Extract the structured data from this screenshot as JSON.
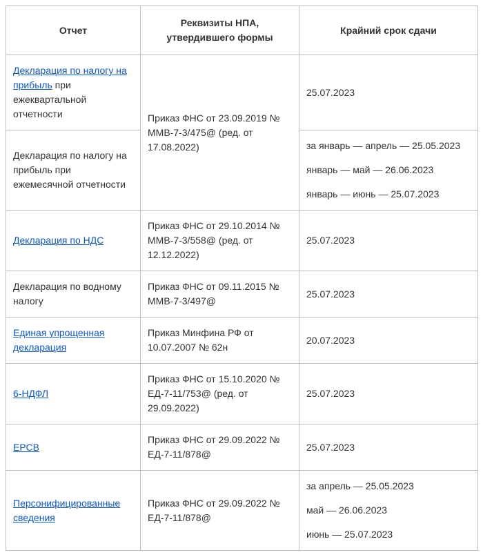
{
  "table": {
    "headers": {
      "c1": "Отчет",
      "c2": "Реквизиты НПА, утвердившего формы",
      "c3": "Крайний срок сдачи"
    },
    "rows": {
      "r1": {
        "link": "Декларация по налогу на прибыль",
        "rest": " при ежеквартальной отчетности",
        "deadline": "25.07.2023"
      },
      "r2": {
        "report": "Декларация по налогу на прибыль при ежемесячной отчетности",
        "npa_shared": "Приказ ФНС от 23.09.2019 № ММВ-7-3/475@ (ред. от 17.08.2022)",
        "d1": "за январь — апрель — 25.05.2023",
        "d2": "январь — май — 26.06.2023",
        "d3": "январь — июнь — 25.07.2023"
      },
      "r3": {
        "link": "Декларация по НДС",
        "npa": "Приказ ФНС от 29.10.2014 № ММВ-7-3/558@ (ред. от 12.12.2022)",
        "deadline": "25.07.2023"
      },
      "r4": {
        "report": "Декларация по водному налогу",
        "npa": "Приказ ФНС от 09.11.2015 № ММВ-7-3/497@",
        "deadline": "25.07.2023"
      },
      "r5": {
        "link": "Единая упрощенная декларация",
        "npa": "Приказ Минфина РФ от 10.07.2007 № 62н",
        "deadline": "20.07.2023"
      },
      "r6": {
        "link": "6-НДФЛ",
        "npa": "Приказ ФНС от 15.10.2020 № ЕД-7-11/753@ (ред. от 29.09.2022)",
        "deadline": "25.07.2023"
      },
      "r7": {
        "link": "ЕРСВ",
        "npa": "Приказ ФНС от 29.09.2022 № ЕД-7-11/878@",
        "deadline": "25.07.2023"
      },
      "r8": {
        "link": "Персонифицированные сведения",
        "npa": "Приказ ФНС от 29.09.2022 № ЕД-7-11/878@",
        "d1": "за апрель — 25.05.2023",
        "d2": "май — 26.06.2023",
        "d3": "июнь — 25.07.2023"
      }
    }
  },
  "colors": {
    "link": "#0b57d0",
    "text": "#333333",
    "border": "#bbbbbb",
    "background": "#ffffff"
  }
}
